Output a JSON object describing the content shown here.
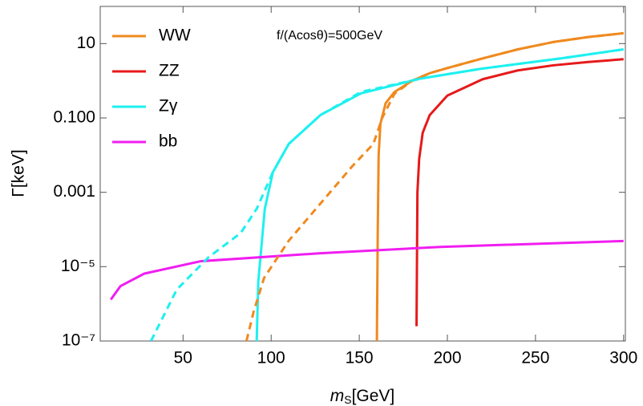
{
  "chart_data": {
    "type": "line",
    "annotation": "f/(Acosθ)=500GeV",
    "x_label": {
      "main": "m",
      "sub": "S",
      "unit": "[GeV]"
    },
    "y_label": "Γ[keV]",
    "xlim": [
      3,
      301
    ],
    "xticks": [
      50,
      100,
      150,
      200,
      250,
      300
    ],
    "ylim": [
      1e-07,
      100
    ],
    "ylog": true,
    "yticks": [
      10,
      {
        "value": 0.1,
        "label": "0.100"
      },
      0.001,
      {
        "value": 1e-05,
        "label": "10⁻⁵"
      },
      {
        "value": 1e-07,
        "label": "10⁻⁷"
      }
    ],
    "legend": "top-left",
    "series": [
      {
        "name": "WW",
        "color": "#ef8a1f",
        "x": [
          160,
          160.5,
          161,
          162,
          165,
          170,
          180,
          190,
          200,
          220,
          240,
          260,
          280,
          300
        ],
        "values": [
          1e-07,
          0.0001,
          0.01,
          0.07,
          0.25,
          0.5,
          1.0,
          1.6,
          2.2,
          4.0,
          7.0,
          11,
          15,
          19
        ]
      },
      {
        "name": "ZZ",
        "color": "#e61a1a",
        "x": [
          182.5,
          183,
          184,
          186,
          190,
          200,
          220,
          240,
          260,
          280,
          300
        ],
        "values": [
          2.5e-07,
          0.001,
          0.008,
          0.04,
          0.12,
          0.4,
          1.1,
          1.9,
          2.6,
          3.2,
          3.8
        ]
      },
      {
        "name": "Zγ",
        "color": "#1ef0f0",
        "x": [
          91.8,
          92.7,
          96.4,
          101,
          110,
          128,
          151,
          185,
          219,
          264.5,
          300
        ],
        "values": [
          1e-07,
          4e-06,
          0.00036,
          0.0035,
          0.02,
          0.12,
          0.46,
          1.15,
          2.1,
          4.0,
          7.0
        ]
      },
      {
        "name": "bb",
        "color": "#f01ef0",
        "x": [
          9,
          14.5,
          28,
          60,
          128,
          196,
          300
        ],
        "values": [
          1.3e-06,
          3e-06,
          6.5e-06,
          1.4e-05,
          2.3e-05,
          3.4e-05,
          4.9e-05
        ]
      },
      {
        "color": "#ef8a1f",
        "dashed": true,
        "x": [
          86,
          90,
          96,
          110,
          128,
          146,
          158,
          163,
          170,
          180,
          190,
          200,
          220,
          240,
          260,
          280,
          300
        ],
        "values": [
          1e-07,
          6e-07,
          5e-06,
          5e-05,
          0.0005,
          0.005,
          0.02,
          0.1,
          0.45,
          1.0,
          1.6,
          2.2,
          4.0,
          7.0,
          11,
          15,
          19
        ]
      },
      {
        "color": "#1ef0f0",
        "dashed": true,
        "x": [
          31.8,
          46.4,
          64.5,
          82.7,
          91.8,
          101,
          110,
          128,
          151,
          185,
          219,
          264.5,
          300
        ],
        "values": [
          1e-07,
          2.4e-06,
          1.8e-05,
          8e-05,
          0.00036,
          0.0035,
          0.02,
          0.12,
          0.5,
          1.15,
          2.1,
          4.0,
          7.0
        ]
      }
    ]
  }
}
